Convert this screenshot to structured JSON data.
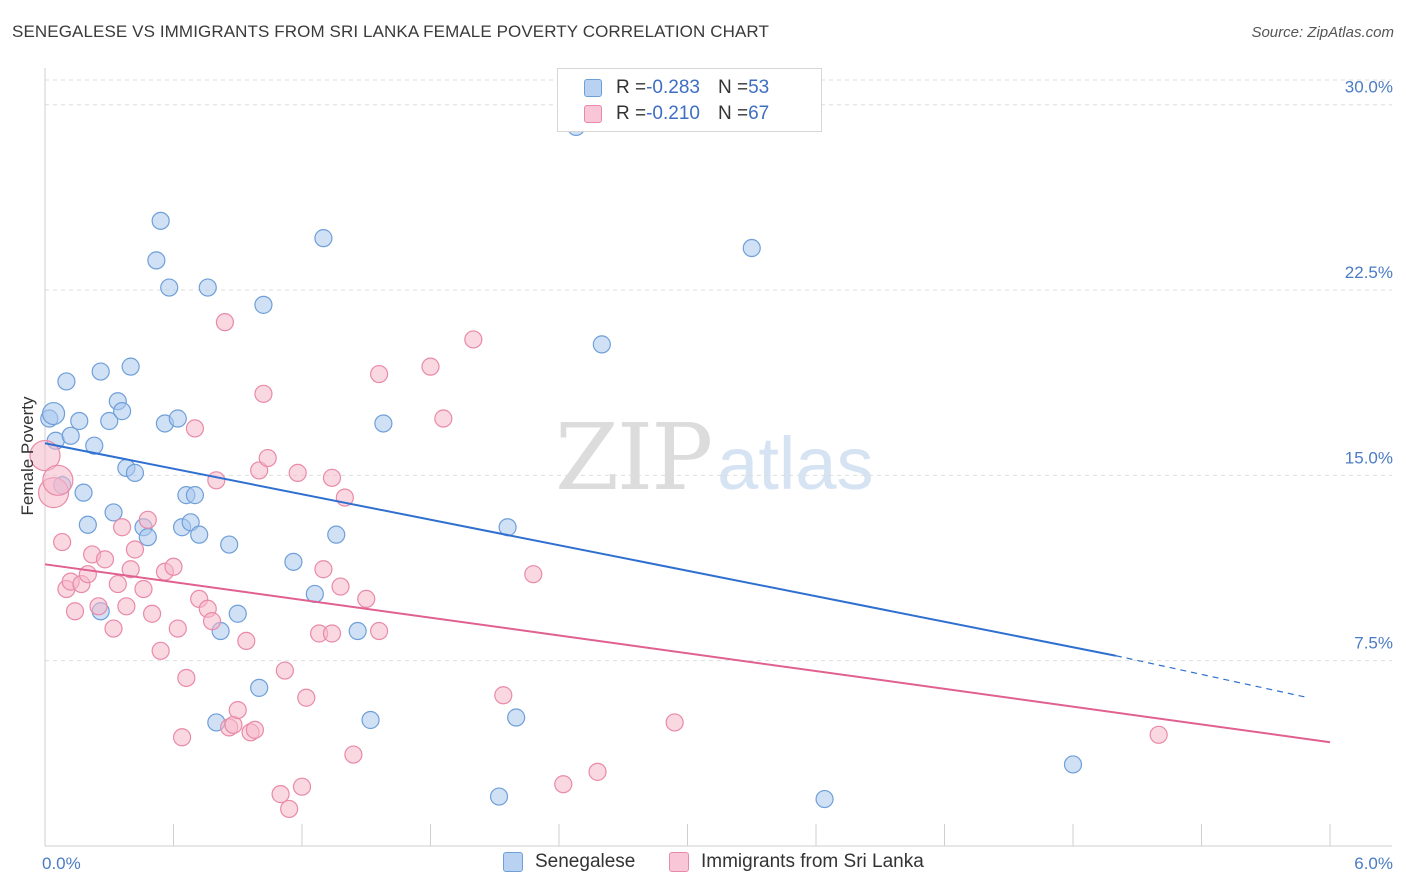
{
  "header": {
    "title": "SENEGALESE VS IMMIGRANTS FROM SRI LANKA FEMALE POVERTY CORRELATION CHART",
    "source": "Source: ZipAtlas.com"
  },
  "watermark": {
    "zip": "ZIP",
    "atlas": "atlas"
  },
  "legend_top": {
    "rows": [
      {
        "r_label": "R = ",
        "r_value": "-0.283",
        "n_label": "N = ",
        "n_value": "53"
      },
      {
        "r_label": "R = ",
        "r_value": "-0.210",
        "n_label": "N = ",
        "n_value": "67"
      }
    ]
  },
  "legend_bottom": {
    "items": [
      "Senegalese",
      "Immigrants from Sri Lanka"
    ]
  },
  "colors": {
    "blue_fill": "#a9c8ee",
    "blue_stroke": "#6f9fd8",
    "blue_line": "#2f6fd0",
    "pink_fill": "#f5b8cb",
    "pink_stroke": "#e98aa8",
    "pink_line": "#e0608f",
    "grid": "#dddddd",
    "tick": "#4a7cc4"
  },
  "chart_data": {
    "type": "scatter",
    "title": "SENEGALESE VS IMMIGRANTS FROM SRI LANKA FEMALE POVERTY CORRELATION CHART",
    "xlabel": "",
    "ylabel": "Female Poverty",
    "xlim": [
      0,
      6.0
    ],
    "ylim": [
      0,
      31.0
    ],
    "x_ticks": [
      "0.0%",
      "6.0%"
    ],
    "y_ticks": [
      {
        "value": 7.5,
        "label": "7.5%"
      },
      {
        "value": 15.0,
        "label": "15.0%"
      },
      {
        "value": 22.5,
        "label": "22.5%"
      },
      {
        "value": 30.0,
        "label": "30.0%"
      }
    ],
    "grid": "horizontal dashed",
    "series": [
      {
        "name": "Senegalese",
        "r": -0.283,
        "n": 53,
        "trend": {
          "x0": 0.0,
          "y0": 16.3,
          "x1": 5.0,
          "y1": 7.7,
          "dash_to_x": 5.9,
          "dash_to_y": 6.0
        },
        "points": [
          [
            0.02,
            17.3
          ],
          [
            0.04,
            17.5
          ],
          [
            0.05,
            16.4
          ],
          [
            0.08,
            14.6
          ],
          [
            0.1,
            18.8
          ],
          [
            0.12,
            16.6
          ],
          [
            0.16,
            17.2
          ],
          [
            0.18,
            14.3
          ],
          [
            0.2,
            13.0
          ],
          [
            0.23,
            16.2
          ],
          [
            0.26,
            9.5
          ],
          [
            0.26,
            19.2
          ],
          [
            0.3,
            17.2
          ],
          [
            0.32,
            13.5
          ],
          [
            0.34,
            18.0
          ],
          [
            0.36,
            17.6
          ],
          [
            0.38,
            15.3
          ],
          [
            0.4,
            19.4
          ],
          [
            0.42,
            15.1
          ],
          [
            0.46,
            12.9
          ],
          [
            0.48,
            12.5
          ],
          [
            0.52,
            23.7
          ],
          [
            0.54,
            25.3
          ],
          [
            0.56,
            17.1
          ],
          [
            0.58,
            22.6
          ],
          [
            0.62,
            17.3
          ],
          [
            0.64,
            12.9
          ],
          [
            0.66,
            14.2
          ],
          [
            0.68,
            13.1
          ],
          [
            0.7,
            14.2
          ],
          [
            0.72,
            12.6
          ],
          [
            0.76,
            22.6
          ],
          [
            0.8,
            5.0
          ],
          [
            0.82,
            8.7
          ],
          [
            0.86,
            12.2
          ],
          [
            0.9,
            9.4
          ],
          [
            1.0,
            6.4
          ],
          [
            1.02,
            21.9
          ],
          [
            1.16,
            11.5
          ],
          [
            1.26,
            10.2
          ],
          [
            1.3,
            24.6
          ],
          [
            1.36,
            12.6
          ],
          [
            1.46,
            8.7
          ],
          [
            1.52,
            5.1
          ],
          [
            1.58,
            17.1
          ],
          [
            2.12,
            2.0
          ],
          [
            2.16,
            12.9
          ],
          [
            2.2,
            5.2
          ],
          [
            2.48,
            29.1
          ],
          [
            2.6,
            20.3
          ],
          [
            3.3,
            24.2
          ],
          [
            3.64,
            1.9
          ],
          [
            4.8,
            3.3
          ]
        ]
      },
      {
        "name": "Immigrants from Sri Lanka",
        "r": -0.21,
        "n": 67,
        "trend": {
          "x0": 0.0,
          "y0": 11.4,
          "x1": 6.0,
          "y1": 4.2
        },
        "points": [
          [
            0.0,
            15.8
          ],
          [
            0.04,
            14.3
          ],
          [
            0.06,
            14.8
          ],
          [
            0.08,
            12.3
          ],
          [
            0.1,
            10.4
          ],
          [
            0.12,
            10.7
          ],
          [
            0.14,
            9.5
          ],
          [
            0.17,
            10.6
          ],
          [
            0.2,
            11.0
          ],
          [
            0.22,
            11.8
          ],
          [
            0.25,
            9.7
          ],
          [
            0.28,
            11.6
          ],
          [
            0.32,
            8.8
          ],
          [
            0.34,
            10.6
          ],
          [
            0.36,
            12.9
          ],
          [
            0.38,
            9.7
          ],
          [
            0.4,
            11.2
          ],
          [
            0.42,
            12.0
          ],
          [
            0.46,
            10.4
          ],
          [
            0.48,
            13.2
          ],
          [
            0.5,
            9.4
          ],
          [
            0.54,
            7.9
          ],
          [
            0.56,
            11.1
          ],
          [
            0.6,
            11.3
          ],
          [
            0.62,
            8.8
          ],
          [
            0.64,
            4.4
          ],
          [
            0.66,
            6.8
          ],
          [
            0.7,
            16.9
          ],
          [
            0.72,
            10.0
          ],
          [
            0.76,
            9.6
          ],
          [
            0.78,
            9.1
          ],
          [
            0.8,
            14.8
          ],
          [
            0.84,
            21.2
          ],
          [
            0.86,
            4.8
          ],
          [
            0.88,
            4.9
          ],
          [
            0.9,
            5.5
          ],
          [
            0.94,
            8.3
          ],
          [
            0.96,
            4.6
          ],
          [
            0.98,
            4.7
          ],
          [
            1.0,
            15.2
          ],
          [
            1.02,
            18.3
          ],
          [
            1.04,
            15.7
          ],
          [
            1.1,
            2.1
          ],
          [
            1.12,
            7.1
          ],
          [
            1.14,
            1.5
          ],
          [
            1.18,
            15.1
          ],
          [
            1.2,
            2.4
          ],
          [
            1.22,
            6.0
          ],
          [
            1.28,
            8.6
          ],
          [
            1.3,
            11.2
          ],
          [
            1.34,
            8.6
          ],
          [
            1.34,
            14.9
          ],
          [
            1.38,
            10.5
          ],
          [
            1.4,
            14.1
          ],
          [
            1.44,
            3.7
          ],
          [
            1.56,
            19.1
          ],
          [
            1.5,
            10.0
          ],
          [
            1.56,
            8.7
          ],
          [
            1.8,
            19.4
          ],
          [
            1.86,
            17.3
          ],
          [
            2.0,
            20.5
          ],
          [
            2.14,
            6.1
          ],
          [
            2.28,
            11.0
          ],
          [
            2.42,
            2.5
          ],
          [
            2.58,
            3.0
          ],
          [
            2.94,
            5.0
          ],
          [
            5.2,
            4.5
          ]
        ]
      }
    ]
  }
}
